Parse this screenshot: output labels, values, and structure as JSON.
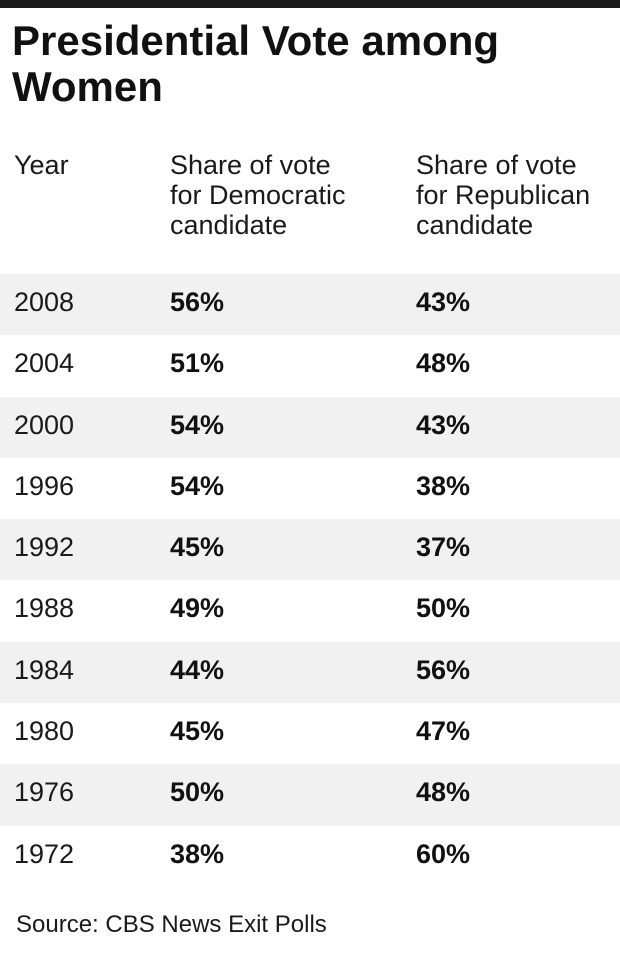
{
  "title": "Presidential Vote among Women",
  "headers": {
    "year": "Year",
    "democratic": [
      "Share of vote",
      "for Democratic",
      "candidate"
    ],
    "republican": [
      "Share of vote",
      "for Republican",
      "candidate"
    ]
  },
  "rows": [
    {
      "year": "2008",
      "dem": "56%",
      "rep": "43%"
    },
    {
      "year": "2004",
      "dem": "51%",
      "rep": "48%"
    },
    {
      "year": "2000",
      "dem": "54%",
      "rep": "43%"
    },
    {
      "year": "1996",
      "dem": "54%",
      "rep": "38%"
    },
    {
      "year": "1992",
      "dem": "45%",
      "rep": "37%"
    },
    {
      "year": "1988",
      "dem": "49%",
      "rep": "50%"
    },
    {
      "year": "1984",
      "dem": "44%",
      "rep": "56%"
    },
    {
      "year": "1980",
      "dem": "45%",
      "rep": "47%"
    },
    {
      "year": "1976",
      "dem": "50%",
      "rep": "48%"
    },
    {
      "year": "1972",
      "dem": "38%",
      "rep": "60%"
    }
  ],
  "source": "Source: CBS News Exit Polls",
  "colors": {
    "row_shade": "#f1f1f1",
    "rule": "#1a1a1a",
    "text": "#111111"
  },
  "chart_data": {
    "type": "table",
    "title": "Presidential Vote among Women",
    "columns": [
      "Year",
      "Share of vote for Democratic candidate",
      "Share of vote for Republican candidate"
    ],
    "categories": [
      "2008",
      "2004",
      "2000",
      "1996",
      "1992",
      "1988",
      "1984",
      "1980",
      "1976",
      "1972"
    ],
    "series": [
      {
        "name": "Share of vote for Democratic candidate",
        "values": [
          56,
          51,
          54,
          54,
          45,
          49,
          44,
          45,
          50,
          38
        ]
      },
      {
        "name": "Share of vote for Republican candidate",
        "values": [
          43,
          48,
          43,
          38,
          37,
          50,
          56,
          47,
          48,
          60
        ]
      }
    ],
    "unit": "%",
    "shaded_rows": "alternating, starting with first data row",
    "source": "Source: CBS News Exit Polls"
  }
}
